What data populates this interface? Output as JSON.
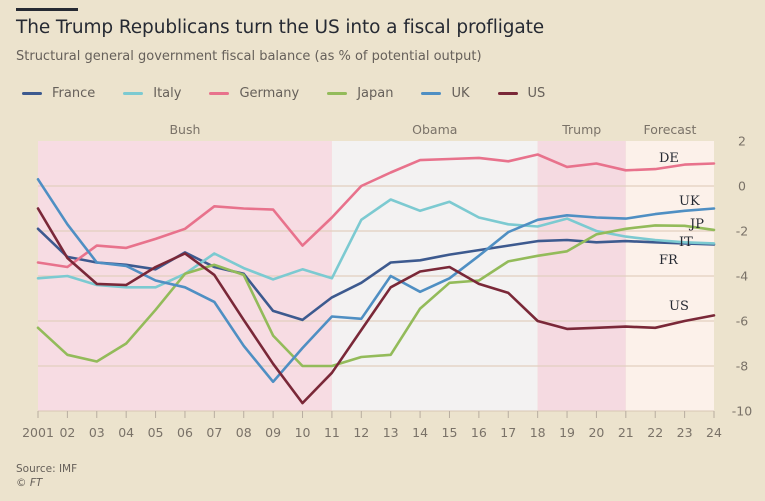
{
  "header": {
    "title": "The Trump Republicans turn the US into a fiscal profligate",
    "subtitle": "Structural general government fiscal balance (as % of potential output)"
  },
  "legend": [
    {
      "name": "France",
      "color": "#3d5a8f"
    },
    {
      "name": "Italy",
      "color": "#7ccad1"
    },
    {
      "name": "Germany",
      "color": "#e8728c"
    },
    {
      "name": "Japan",
      "color": "#93bb5a"
    },
    {
      "name": "UK",
      "color": "#4f8fc3"
    },
    {
      "name": "US",
      "color": "#7a2838"
    }
  ],
  "footer": {
    "source": "Source: IMF",
    "credit": "© FT"
  },
  "colors": {
    "background": "#ece3cd",
    "bush_band": "#f7dce3",
    "obama_band": "#f3f2f2",
    "trump_band": "#f5dae1",
    "forecast_band": "#fcf1ea",
    "gridline": "#e2cfbf"
  },
  "chart_data": {
    "type": "line",
    "title": "The Trump Republicans turn the US into a fiscal profligate",
    "subtitle": "Structural general government fiscal balance (as % of potential output)",
    "xlabel": "",
    "ylabel": "",
    "x": [
      2001,
      2002,
      2003,
      2004,
      2005,
      2006,
      2007,
      2008,
      2009,
      2010,
      2011,
      2012,
      2013,
      2014,
      2015,
      2016,
      2017,
      2018,
      2019,
      2020,
      2021,
      2022,
      2023,
      2024
    ],
    "x_tick_labels": [
      "2001",
      "02",
      "03",
      "04",
      "05",
      "06",
      "07",
      "08",
      "09",
      "10",
      "11",
      "12",
      "13",
      "14",
      "15",
      "16",
      "17",
      "18",
      "19",
      "20",
      "21",
      "22",
      "23",
      "24"
    ],
    "xlim": [
      2001,
      2024
    ],
    "ylim": [
      -10,
      2
    ],
    "y_ticks": [
      2,
      0,
      -2,
      -4,
      -6,
      -8,
      -10
    ],
    "y_axis_side": "right",
    "grid": true,
    "legend_position": "top-left",
    "periods": [
      {
        "label": "Bush",
        "start": 2001,
        "end": 2011,
        "color": "#f7dce3"
      },
      {
        "label": "Obama",
        "start": 2011,
        "end": 2018,
        "color": "#f3f2f2"
      },
      {
        "label": "Trump",
        "start": 2018,
        "end": 2021,
        "color": "#f5dae1"
      },
      {
        "label": "Forecast",
        "start": 2021,
        "end": 2024,
        "color": "#fcf1ea"
      }
    ],
    "series": [
      {
        "name": "France",
        "short": "FR",
        "color": "#3d5a8f",
        "values": [
          -1.9,
          -3.15,
          -3.4,
          -3.5,
          -3.7,
          -2.95,
          -3.6,
          -3.9,
          -5.55,
          -5.95,
          -4.95,
          -4.3,
          -3.4,
          -3.3,
          -3.05,
          -2.85,
          -2.65,
          -2.45,
          -2.4,
          -2.5,
          -2.45,
          -2.5,
          -2.55,
          -2.6
        ]
      },
      {
        "name": "Italy",
        "short": "IT",
        "color": "#7ccad1",
        "values": [
          -4.1,
          -4.0,
          -4.4,
          -4.5,
          -4.5,
          -3.9,
          -3.0,
          -3.65,
          -4.15,
          -3.7,
          -4.1,
          -1.5,
          -0.6,
          -1.1,
          -0.7,
          -1.4,
          -1.7,
          -1.8,
          -1.45,
          -2.0,
          -2.25,
          -2.4,
          -2.5,
          -2.55
        ]
      },
      {
        "name": "Germany",
        "short": "DE",
        "color": "#e8728c",
        "values": [
          -3.4,
          -3.6,
          -2.65,
          -2.75,
          -2.35,
          -1.9,
          -0.9,
          -1.0,
          -1.05,
          -2.65,
          -1.4,
          0.0,
          0.6,
          1.15,
          1.2,
          1.25,
          1.1,
          1.4,
          0.85,
          1.0,
          0.7,
          0.75,
          0.95,
          1.0
        ]
      },
      {
        "name": "Japan",
        "short": "JP",
        "color": "#93bb5a",
        "values": [
          -6.3,
          -7.5,
          -7.8,
          -7.0,
          -5.5,
          -3.9,
          -3.5,
          -3.95,
          -6.65,
          -8.0,
          -8.0,
          -7.6,
          -7.5,
          -5.45,
          -4.3,
          -4.2,
          -3.35,
          -3.1,
          -2.9,
          -2.15,
          -1.9,
          -1.75,
          -1.77,
          -1.95
        ]
      },
      {
        "name": "UK",
        "short": "UK",
        "color": "#4f8fc3",
        "values": [
          0.3,
          -1.7,
          -3.4,
          -3.55,
          -4.2,
          -4.5,
          -5.15,
          -7.1,
          -8.7,
          -7.2,
          -5.8,
          -5.9,
          -4.0,
          -4.7,
          -4.1,
          -3.1,
          -2.05,
          -1.5,
          -1.3,
          -1.4,
          -1.45,
          -1.25,
          -1.1,
          -1.0
        ]
      },
      {
        "name": "US",
        "short": "US",
        "color": "#7a2838",
        "values": [
          -1.0,
          -3.2,
          -4.35,
          -4.4,
          -3.6,
          -3.0,
          -3.95,
          -5.95,
          -7.9,
          -9.65,
          -8.3,
          -6.4,
          -4.5,
          -3.8,
          -3.6,
          -4.35,
          -4.75,
          -6.0,
          -6.35,
          -6.3,
          -6.25,
          -6.3,
          -6.0,
          -5.75
        ]
      }
    ],
    "annotations": [
      {
        "text": "DE",
        "series": "Germany"
      },
      {
        "text": "UK",
        "series": "UK"
      },
      {
        "text": "JP",
        "series": "Japan"
      },
      {
        "text": "IT",
        "series": "Italy"
      },
      {
        "text": "FR",
        "series": "France"
      },
      {
        "text": "US",
        "series": "US"
      }
    ]
  }
}
